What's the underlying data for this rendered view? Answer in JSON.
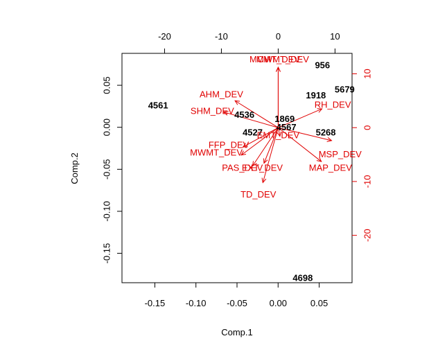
{
  "chart_data": {
    "type": "scatter",
    "subtype": "biplot",
    "title": "",
    "xlabel": "Comp.1",
    "ylabel": "Comp.2",
    "xlim": [
      -0.19,
      0.09
    ],
    "ylim": [
      -0.185,
      0.088
    ],
    "x_ticks": [
      -0.15,
      -0.1,
      -0.05,
      0.0,
      0.05
    ],
    "x_tick_labels": [
      "-0.15",
      "-0.10",
      "-0.05",
      "0.00",
      "0.05"
    ],
    "y_ticks": [
      -0.15,
      -0.1,
      -0.05,
      0.0,
      0.05
    ],
    "y_tick_labels": [
      "-0.15",
      "-0.10",
      "-0.05",
      "0.00",
      "0.05"
    ],
    "top_axis": {
      "lim": [
        -27.5,
        13.0
      ],
      "ticks": [
        -20,
        -10,
        0,
        10
      ],
      "tick_labels": [
        "-20",
        "-10",
        "0",
        "10"
      ]
    },
    "right_axis": {
      "lim": [
        -28.8,
        13.8
      ],
      "ticks": [
        -20,
        -10,
        0,
        10
      ],
      "tick_labels": [
        "-20",
        "-10",
        "0",
        "10"
      ]
    },
    "grid": false,
    "colors": {
      "observations": "#000000",
      "variables": "#e00000"
    },
    "observations": [
      {
        "label": "4561",
        "x": -0.146,
        "y": 0.026
      },
      {
        "label": "956",
        "x": 0.054,
        "y": 0.074
      },
      {
        "label": "1918",
        "x": 0.046,
        "y": 0.038
      },
      {
        "label": "5679",
        "x": 0.081,
        "y": 0.045
      },
      {
        "label": "4536",
        "x": -0.041,
        "y": 0.015
      },
      {
        "label": "1869",
        "x": 0.008,
        "y": 0.01
      },
      {
        "label": "4567",
        "x": 0.01,
        "y": 0.0
      },
      {
        "label": "4527",
        "x": -0.031,
        "y": -0.006
      },
      {
        "label": "5268",
        "x": 0.058,
        "y": -0.006
      },
      {
        "label": "4698",
        "x": 0.03,
        "y": -0.179
      }
    ],
    "variables": [
      {
        "label": "MCMT_DEV",
        "x": 0.0,
        "y": 11.2,
        "lx": -0.6,
        "ly": 12.7
      },
      {
        "label": "MWMT_DEV",
        "x": 0.0,
        "y": 11.2,
        "lx": 0.8,
        "ly": 12.7
      },
      {
        "label": "AHM_DEV",
        "x": -7.6,
        "y": 5.0,
        "lx": -10.0,
        "ly": 6.2
      },
      {
        "label": "SHM_DEV",
        "x": -9.6,
        "y": 2.9,
        "lx": -11.6,
        "ly": 3.1
      },
      {
        "label": "RH_DEV",
        "x": 7.7,
        "y": 3.5,
        "lx": 9.6,
        "ly": 4.3
      },
      {
        "label": "MSP_DEV",
        "x": 9.4,
        "y": -2.4,
        "lx": 10.9,
        "ly": -4.9
      },
      {
        "label": "MAP_DEV",
        "x": 7.6,
        "y": -6.3,
        "lx": 9.2,
        "ly": -7.4
      },
      {
        "label": "EMT_DEV",
        "x": 0.3,
        "y": -1.6,
        "lx": 0.0,
        "ly": -1.4
      },
      {
        "label": "FFP_DEV",
        "x": -6.2,
        "y": -3.6,
        "lx": -8.7,
        "ly": -3.2
      },
      {
        "label": "MWMT_DEV",
        "x": -6.5,
        "y": -5.1,
        "lx": -10.9,
        "ly": -4.6
      },
      {
        "label": "PAS_DEV",
        "x": -4.5,
        "y": -7.1,
        "lx": -6.3,
        "ly": -7.4
      },
      {
        "label": "EXT_DEV",
        "x": -2.5,
        "y": -6.6,
        "lx": -2.8,
        "ly": -7.4
      },
      {
        "label": "TD_DEV",
        "x": -2.7,
        "y": -10.2,
        "lx": -3.5,
        "ly": -12.4
      }
    ]
  }
}
